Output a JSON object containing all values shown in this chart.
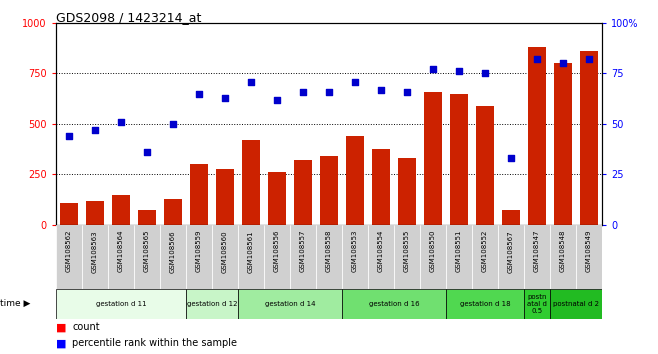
{
  "title": "GDS2098 / 1423214_at",
  "samples": [
    "GSM108562",
    "GSM108563",
    "GSM108564",
    "GSM108565",
    "GSM108566",
    "GSM108559",
    "GSM108560",
    "GSM108561",
    "GSM108556",
    "GSM108557",
    "GSM108558",
    "GSM108553",
    "GSM108554",
    "GSM108555",
    "GSM108550",
    "GSM108551",
    "GSM108552",
    "GSM108567",
    "GSM108547",
    "GSM108548",
    "GSM108549"
  ],
  "counts": [
    110,
    120,
    150,
    75,
    130,
    300,
    275,
    420,
    260,
    320,
    340,
    440,
    375,
    330,
    660,
    650,
    590,
    75,
    880,
    800,
    860
  ],
  "percentiles": [
    44,
    47,
    51,
    36,
    50,
    65,
    63,
    71,
    62,
    66,
    66,
    71,
    67,
    66,
    77,
    76,
    75,
    33,
    82,
    80,
    82
  ],
  "groups": [
    {
      "label": "gestation d 11",
      "start": 0,
      "end": 5,
      "color": "#e8fce8"
    },
    {
      "label": "gestation d 12",
      "start": 5,
      "end": 7,
      "color": "#c8f5c8"
    },
    {
      "label": "gestation d 14",
      "start": 7,
      "end": 11,
      "color": "#a0eca0"
    },
    {
      "label": "gestation d 16",
      "start": 11,
      "end": 15,
      "color": "#70e070"
    },
    {
      "label": "gestation d 18",
      "start": 15,
      "end": 18,
      "color": "#50d850"
    },
    {
      "label": "postn\natal d\n0.5",
      "start": 18,
      "end": 19,
      "color": "#30cc30"
    },
    {
      "label": "postnatal d 2",
      "start": 19,
      "end": 21,
      "color": "#22bb22"
    }
  ],
  "bar_color": "#cc2200",
  "dot_color": "#0000cc",
  "ylim_left": [
    0,
    1000
  ],
  "ylim_right": [
    0,
    100
  ],
  "yticks_left": [
    0,
    250,
    500,
    750,
    1000
  ],
  "ytick_labels_left": [
    "0",
    "250",
    "500",
    "750",
    "1000"
  ],
  "yticks_right": [
    0,
    25,
    50,
    75,
    100
  ],
  "ytick_labels_right": [
    "0",
    "25",
    "50",
    "75",
    "100%"
  ]
}
